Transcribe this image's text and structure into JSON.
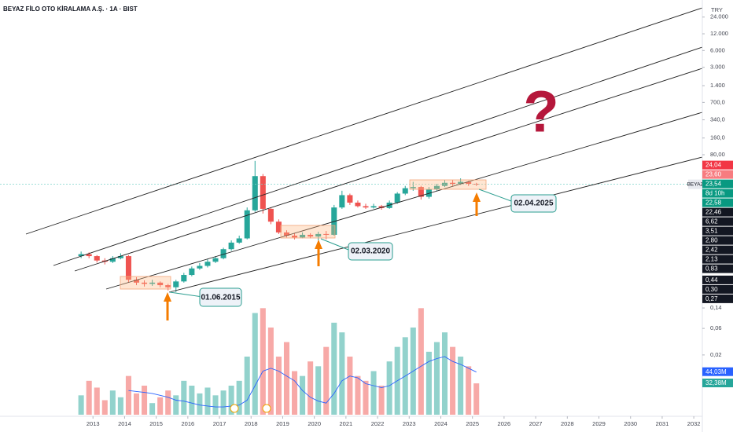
{
  "chart_data": {
    "type": "candlestick",
    "title": "BEYAZ FİLO OTO KİRALAMA A.Ş. · 1A · BIST",
    "currency": "TRY",
    "symbol": "BEYAZ",
    "log_scale": true,
    "grid": false,
    "up_color": "#26a69a",
    "down_color": "#ef5350",
    "x": [
      2012.625,
      2012.875,
      2013.125,
      2013.375,
      2013.625,
      2013.875,
      2014.125,
      2014.375,
      2014.625,
      2014.875,
      2015.125,
      2015.375,
      2015.625,
      2015.875,
      2016.125,
      2016.375,
      2016.625,
      2016.875,
      2017.125,
      2017.375,
      2017.625,
      2017.875,
      2018.125,
      2018.375,
      2018.625,
      2018.875,
      2019.125,
      2019.375,
      2019.625,
      2019.875,
      2020.125,
      2020.375,
      2020.625,
      2020.875,
      2021.125,
      2021.375,
      2021.625,
      2021.875,
      2022.125,
      2022.375,
      2022.625,
      2022.875,
      2023.125,
      2023.375,
      2023.625,
      2023.875,
      2024.125,
      2024.375,
      2024.625,
      2024.875,
      2025.125
    ],
    "open": [
      1.2,
      1.3,
      1.2,
      1.0,
      0.95,
      1.1,
      1.2,
      0.45,
      0.4,
      0.38,
      0.4,
      0.36,
      0.33,
      0.42,
      0.55,
      0.72,
      0.8,
      0.95,
      1.1,
      1.6,
      2.1,
      2.5,
      8.0,
      33,
      8.5,
      5.0,
      3.2,
      2.8,
      2.6,
      2.9,
      2.7,
      3.0,
      2.9,
      9.0,
      15,
      11,
      9.5,
      9.0,
      9.5,
      8.8,
      11,
      16,
      20,
      21,
      14,
      19,
      22,
      25,
      24,
      26,
      24
    ],
    "high": [
      1.45,
      1.4,
      1.25,
      1.1,
      1.2,
      1.35,
      1.25,
      0.5,
      0.44,
      0.45,
      0.42,
      0.38,
      0.45,
      0.6,
      0.78,
      0.9,
      1.05,
      1.2,
      1.7,
      2.3,
      2.8,
      9.0,
      62,
      36,
      9.0,
      5.5,
      3.5,
      3.1,
      3.2,
      3.1,
      3.3,
      3.4,
      10,
      18,
      16,
      12,
      10.5,
      10.5,
      10,
      12,
      17,
      22,
      26,
      22,
      21,
      24,
      28,
      28,
      30,
      27,
      25
    ],
    "low": [
      1.1,
      1.1,
      0.92,
      0.85,
      0.9,
      1.05,
      0.4,
      0.36,
      0.34,
      0.35,
      0.33,
      0.29,
      0.27,
      0.4,
      0.52,
      0.68,
      0.75,
      0.9,
      1.05,
      1.5,
      2.0,
      2.4,
      7.5,
      7.0,
      4.5,
      3.0,
      2.6,
      2.4,
      2.5,
      2.5,
      2.3,
      2.4,
      2.8,
      8.5,
      10,
      9,
      8.5,
      8.6,
      8.2,
      8.5,
      10.5,
      15,
      18,
      12.5,
      13,
      18,
      21,
      22,
      23,
      22,
      22
    ],
    "close": [
      1.3,
      1.2,
      1.0,
      0.95,
      1.1,
      1.2,
      0.45,
      0.4,
      0.38,
      0.4,
      0.36,
      0.33,
      0.42,
      0.55,
      0.72,
      0.8,
      0.95,
      1.1,
      1.6,
      2.1,
      2.5,
      8.0,
      33,
      8.5,
      5.0,
      3.2,
      2.8,
      2.6,
      2.9,
      2.7,
      3.0,
      2.9,
      9.0,
      15,
      11,
      9.5,
      9.0,
      9.5,
      8.8,
      11,
      16,
      20,
      21,
      14,
      19,
      22,
      25,
      24,
      26,
      24,
      23.54
    ],
    "volume": {
      "up_color": "rgba(38,166,154,0.5)",
      "down_color": "rgba(239,83,80,0.5)",
      "ma_color": "#2962ff",
      "values": [
        20,
        35,
        28,
        15,
        25,
        18,
        40,
        22,
        30,
        12,
        18,
        25,
        20,
        35,
        30,
        22,
        28,
        20,
        25,
        30,
        35,
        60,
        105,
        110,
        90,
        60,
        75,
        45,
        40,
        55,
        50,
        70,
        95,
        85,
        60,
        40,
        35,
        45,
        30,
        55,
        70,
        80,
        90,
        110,
        65,
        75,
        85,
        70,
        60,
        50,
        32.38
      ],
      "ma": [
        null,
        null,
        null,
        null,
        null,
        null,
        25,
        24,
        23,
        22,
        20,
        18,
        15,
        14,
        12,
        10,
        9,
        8,
        8,
        9,
        10,
        15,
        30,
        45,
        48,
        45,
        40,
        35,
        25,
        18,
        14,
        12,
        22,
        35,
        40,
        38,
        32,
        30,
        28,
        30,
        35,
        40,
        45,
        50,
        55,
        58,
        60,
        55,
        52,
        48,
        44.03
      ],
      "labels": [
        {
          "value": 44.03,
          "label": "44,03M",
          "color": "#2962ff"
        },
        {
          "value": 32.38,
          "label": "32,38M",
          "color": "#26a69a"
        }
      ]
    },
    "xlim": [
      2010.06,
      2032.27
    ],
    "xticks": [
      2013,
      2014,
      2015,
      2016,
      2017,
      2018,
      2019,
      2020,
      2021,
      2022,
      2023,
      2024,
      2025,
      2026,
      2027,
      2028,
      2029,
      2030,
      2031,
      2032
    ],
    "ylim": [
      0.00168,
      48680
    ],
    "yticks": [
      {
        "value": 24000,
        "label": "24.000"
      },
      {
        "value": 12000,
        "label": "12.000"
      },
      {
        "value": 6000,
        "label": "6.000"
      },
      {
        "value": 3000,
        "label": "3.000"
      },
      {
        "value": 1400,
        "label": "1.400"
      },
      {
        "value": 700,
        "label": "700,0"
      },
      {
        "value": 340,
        "label": "340,0"
      },
      {
        "value": 160,
        "label": "160,0"
      },
      {
        "value": 80,
        "label": "80,00"
      },
      {
        "value": 0.14,
        "label": "0,14"
      },
      {
        "value": 0.06,
        "label": "0,06"
      },
      {
        "value": 0.02,
        "label": "0,02"
      }
    ],
    "y2lim": [
      0,
      150
    ],
    "countdown": "8d 10h",
    "price_labels": [
      {
        "value": 24.04,
        "label": "24,04",
        "color": "#f23645"
      },
      {
        "value": 23.6,
        "label": "23,60",
        "color": "#f77c80"
      },
      {
        "value": 23.54,
        "label": "23,54",
        "color": "#089981"
      },
      {
        "value": 22.58,
        "label": "22,58",
        "color": "#089981"
      },
      {
        "value": 22.46,
        "label": "22,46",
        "color": "#131722"
      },
      {
        "value": 6.62,
        "label": "6,62",
        "color": "#131722"
      },
      {
        "value": 3.51,
        "label": "3,51",
        "color": "#131722"
      },
      {
        "value": 2.8,
        "label": "2,80",
        "color": "#131722"
      },
      {
        "value": 2.42,
        "label": "2,42",
        "color": "#131722"
      },
      {
        "value": 2.13,
        "label": "2,13",
        "color": "#131722"
      },
      {
        "value": 0.83,
        "label": "0,83",
        "color": "#131722"
      },
      {
        "value": 0.44,
        "label": "0,44",
        "color": "#131722"
      },
      {
        "value": 0.3,
        "label": "0,30",
        "color": "#131722"
      },
      {
        "value": 0.27,
        "label": "0,27",
        "color": "#131722"
      }
    ],
    "annotations": [
      "01.06.2015",
      "02.03.2020",
      "02.04.2025"
    ],
    "question": "?"
  }
}
